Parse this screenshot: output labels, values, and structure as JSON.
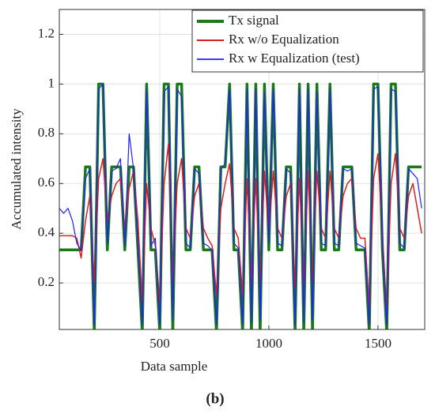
{
  "chart_data": {
    "type": "line",
    "subtitle": "(b)",
    "xlabel": "Data sample",
    "ylabel": "Accumulated intensity",
    "xlim": [
      40,
      1714
    ],
    "ylim": [
      0.013,
      1.3
    ],
    "xticks": [
      500,
      1000,
      1500
    ],
    "yticks": [
      0.2,
      0.4,
      0.6,
      0.8,
      1,
      1.2
    ],
    "grid": true,
    "legend": "upper right",
    "x": [
      40,
      60,
      80,
      100,
      120,
      140,
      160,
      180,
      200,
      220,
      240,
      260,
      280,
      300,
      320,
      340,
      360,
      380,
      400,
      420,
      440,
      460,
      480,
      500,
      520,
      540,
      560,
      580,
      600,
      620,
      640,
      660,
      680,
      700,
      720,
      740,
      760,
      780,
      800,
      820,
      840,
      860,
      880,
      900,
      920,
      940,
      960,
      980,
      1000,
      1020,
      1040,
      1060,
      1080,
      1100,
      1120,
      1140,
      1160,
      1180,
      1200,
      1220,
      1240,
      1260,
      1280,
      1300,
      1320,
      1340,
      1360,
      1380,
      1400,
      1420,
      1440,
      1460,
      1480,
      1500,
      1520,
      1540,
      1560,
      1580,
      1600,
      1620,
      1640,
      1660,
      1680,
      1700
    ],
    "series": [
      {
        "name": "Tx signal",
        "color": "#1a7a1a",
        "width": 3.5,
        "values": [
          0.333,
          0.333,
          0.333,
          0.333,
          0.333,
          0.333,
          0.667,
          0.667,
          0,
          1,
          1,
          0.333,
          0.667,
          0.667,
          0.667,
          0.333,
          0.667,
          0.667,
          0.333,
          0,
          1,
          0.333,
          0.333,
          0,
          1,
          1,
          0,
          1,
          1,
          0.333,
          0.333,
          0.667,
          0.667,
          0.333,
          0.333,
          0.333,
          0,
          0.667,
          0.667,
          1,
          0.333,
          0.333,
          0,
          1,
          0,
          1,
          0,
          1,
          0.333,
          1,
          0.333,
          0.333,
          0.667,
          0.667,
          0,
          1,
          0,
          1,
          0,
          1,
          0.333,
          0.333,
          1,
          0.333,
          0.333,
          0.667,
          0.667,
          0.667,
          0.333,
          0.333,
          0.333,
          0,
          1,
          1,
          0.333,
          0,
          1,
          1,
          0.333,
          0.333,
          0.667,
          0.667,
          0.667,
          0.667
        ]
      },
      {
        "name": "Rx w/o Equalization",
        "color": "#d42020",
        "width": 1.5,
        "values": [
          0.39,
          0.39,
          0.39,
          0.39,
          0.38,
          0.3,
          0.45,
          0.55,
          0.2,
          0.62,
          0.7,
          0.45,
          0.55,
          0.6,
          0.62,
          0.42,
          0.58,
          0.65,
          0.45,
          0.12,
          0.6,
          0.42,
          0.35,
          0.12,
          0.6,
          0.76,
          0.2,
          0.6,
          0.7,
          0.42,
          0.38,
          0.55,
          0.6,
          0.42,
          0.38,
          0.35,
          0.15,
          0.5,
          0.6,
          0.68,
          0.42,
          0.38,
          0.15,
          0.62,
          0.2,
          0.62,
          0.2,
          0.65,
          0.4,
          0.65,
          0.42,
          0.38,
          0.55,
          0.6,
          0.18,
          0.62,
          0.2,
          0.65,
          0.2,
          0.65,
          0.42,
          0.38,
          0.65,
          0.42,
          0.38,
          0.55,
          0.6,
          0.62,
          0.42,
          0.38,
          0.38,
          0.1,
          0.62,
          0.72,
          0.4,
          0.08,
          0.6,
          0.72,
          0.42,
          0.38,
          0.55,
          0.6,
          0.5,
          0.4
        ]
      },
      {
        "name": "Rx w Equalization (test)",
        "color": "#2020ff",
        "width": 1.2,
        "values": [
          0.5,
          0.48,
          0.5,
          0.45,
          0.36,
          0.33,
          0.62,
          0.66,
          0.03,
          0.98,
          1,
          0.36,
          0.65,
          0.66,
          0.7,
          0.35,
          0.8,
          0.66,
          0.36,
          0.03,
          0.98,
          0.35,
          0.38,
          0.03,
          0.97,
          0.99,
          0.05,
          0.98,
          0.95,
          0.36,
          0.34,
          0.66,
          0.64,
          0.36,
          0.35,
          0.33,
          0.03,
          0.66,
          0.68,
          0.98,
          0.36,
          0.34,
          0.03,
          0.98,
          0.04,
          0.98,
          0.05,
          0.97,
          0.36,
          0.98,
          0.36,
          0.35,
          0.66,
          0.64,
          0.03,
          0.98,
          0.04,
          0.98,
          0.05,
          0.97,
          0.36,
          0.35,
          0.98,
          0.36,
          0.35,
          0.66,
          0.65,
          0.66,
          0.36,
          0.35,
          0.34,
          0.03,
          0.98,
          0.99,
          0.36,
          0.03,
          0.98,
          0.97,
          0.36,
          0.34,
          0.66,
          0.64,
          0.62,
          0.5
        ]
      }
    ]
  }
}
